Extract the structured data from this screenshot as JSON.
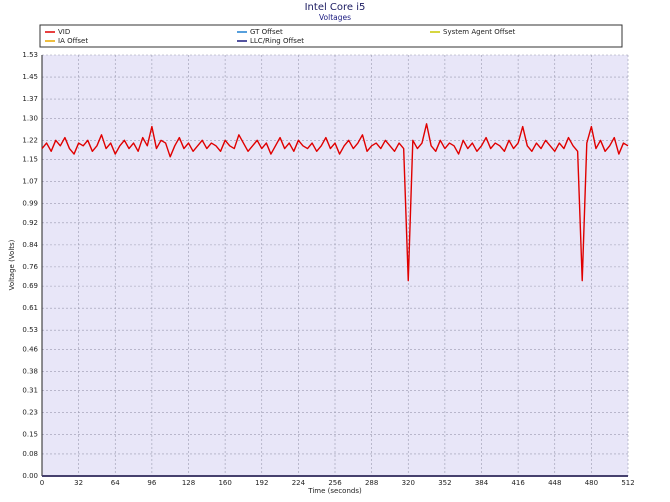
{
  "chart_data": {
    "type": "line",
    "title": "Intel Core i5",
    "subtitle": "Voltages",
    "x_label": "Time (seconds)",
    "y_label": "Voltage (Volts)",
    "xlim": [
      0,
      512
    ],
    "xticks": [
      0,
      32,
      64,
      96,
      128,
      160,
      192,
      224,
      256,
      288,
      320,
      352,
      384,
      416,
      448,
      480,
      512
    ],
    "ylim": [
      0,
      1.53
    ],
    "yticks": [
      {
        "value": 0,
        "label": "0.00"
      },
      0.08,
      0.15,
      0.23,
      0.31,
      0.38,
      0.46,
      0.53,
      0.61,
      0.69,
      0.76,
      0.84,
      0.92,
      0.99,
      1.07,
      1.15,
      1.22,
      {
        "value": 1.3,
        "label": "1.30"
      },
      1.37,
      1.45,
      1.53
    ],
    "grid": true,
    "x": [
      0,
      4,
      8,
      12,
      16,
      20,
      24,
      28,
      32,
      36,
      40,
      44,
      48,
      52,
      56,
      60,
      64,
      68,
      72,
      76,
      80,
      84,
      88,
      92,
      96,
      100,
      104,
      108,
      112,
      116,
      120,
      124,
      128,
      132,
      136,
      140,
      144,
      148,
      152,
      156,
      160,
      164,
      168,
      172,
      176,
      180,
      184,
      188,
      192,
      196,
      200,
      204,
      208,
      212,
      216,
      220,
      224,
      228,
      232,
      236,
      240,
      244,
      248,
      252,
      256,
      260,
      264,
      268,
      272,
      276,
      280,
      284,
      288,
      292,
      296,
      300,
      304,
      308,
      312,
      316,
      320,
      324,
      328,
      332,
      336,
      340,
      344,
      348,
      352,
      356,
      360,
      364,
      368,
      372,
      376,
      380,
      384,
      388,
      392,
      396,
      400,
      404,
      408,
      412,
      416,
      420,
      424,
      428,
      432,
      436,
      440,
      444,
      448,
      452,
      456,
      460,
      464,
      468,
      472,
      476,
      480,
      484,
      488,
      492,
      496,
      500,
      504,
      508,
      512
    ],
    "series": [
      {
        "name": "GT Offset",
        "color": "#1e7fd0",
        "x": [
          0,
          512
        ],
        "values": [
          0,
          0
        ]
      },
      {
        "name": "System Agent Offset",
        "color": "#c8c800",
        "x": [
          0,
          512
        ],
        "values": [
          0,
          0
        ]
      },
      {
        "name": "IA Offset",
        "color": "#e8a800",
        "x": [
          0,
          512
        ],
        "values": [
          0,
          0
        ]
      },
      {
        "name": "LLC/Ring Offset",
        "color": "#1a1a80",
        "x": [
          0,
          512
        ],
        "values": [
          0,
          0
        ]
      },
      {
        "name": "VID",
        "color": "#e00000",
        "values": [
          1.19,
          1.21,
          1.18,
          1.22,
          1.2,
          1.23,
          1.19,
          1.17,
          1.21,
          1.2,
          1.22,
          1.18,
          1.2,
          1.24,
          1.19,
          1.21,
          1.17,
          1.2,
          1.22,
          1.19,
          1.21,
          1.18,
          1.23,
          1.2,
          1.27,
          1.19,
          1.22,
          1.21,
          1.16,
          1.2,
          1.23,
          1.19,
          1.21,
          1.18,
          1.2,
          1.22,
          1.19,
          1.21,
          1.2,
          1.18,
          1.22,
          1.2,
          1.19,
          1.24,
          1.21,
          1.18,
          1.2,
          1.22,
          1.19,
          1.21,
          1.17,
          1.2,
          1.23,
          1.19,
          1.21,
          1.18,
          1.22,
          1.2,
          1.19,
          1.21,
          1.18,
          1.2,
          1.23,
          1.19,
          1.21,
          1.17,
          1.2,
          1.22,
          1.19,
          1.21,
          1.24,
          1.18,
          1.2,
          1.21,
          1.19,
          1.22,
          1.2,
          1.18,
          1.21,
          1.19,
          0.71,
          1.22,
          1.19,
          1.21,
          1.28,
          1.2,
          1.18,
          1.22,
          1.19,
          1.21,
          1.2,
          1.17,
          1.22,
          1.19,
          1.21,
          1.18,
          1.2,
          1.23,
          1.19,
          1.21,
          1.2,
          1.18,
          1.22,
          1.19,
          1.21,
          1.27,
          1.2,
          1.18,
          1.21,
          1.19,
          1.22,
          1.2,
          1.18,
          1.21,
          1.19,
          1.23,
          1.2,
          1.18,
          0.71,
          1.21,
          1.27,
          1.19,
          1.22,
          1.18,
          1.2,
          1.23,
          1.17,
          1.21,
          1.2
        ]
      }
    ],
    "legend_order": [
      "VID",
      "GT Offset",
      "System Agent Offset",
      "IA Offset",
      "LLC/Ring Offset"
    ]
  }
}
